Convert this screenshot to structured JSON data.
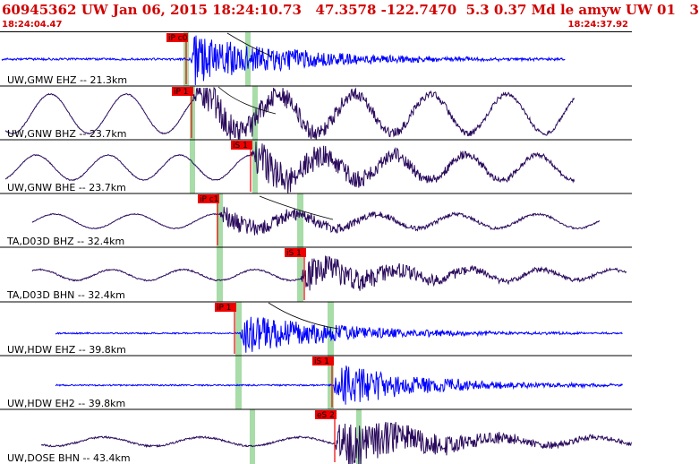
{
  "header": {
    "title": "60945362 UW Jan 06, 2015 18:24:10.73   47.3578 -122.7470  5.3 0.37 Md le amyw UW 01   3",
    "time_start": "18:24:04.47",
    "time_end": "18:24:37.92"
  },
  "colors": {
    "header_text": "#d00000",
    "trace_blue": "#0000ff",
    "trace_dark": "#2a0a5c",
    "pick_red": "#ee0000",
    "window_green": "#a8dca8",
    "divider": "#000000"
  },
  "traces": [
    {
      "label": "UW,GMW EHZ -- 21.3km",
      "color": "blue",
      "pick": "iP c0",
      "pick_type": "P"
    },
    {
      "label": "UW,GNW BHZ -- 23.7km",
      "color": "dark",
      "pick": "iP 1",
      "pick_type": "P"
    },
    {
      "label": "UW,GNW BHE -- 23.7km",
      "color": "dark",
      "pick": "iS 1",
      "pick_type": "S"
    },
    {
      "label": "TA,D03D BHZ -- 32.4km",
      "color": "dark",
      "pick": "iP c1",
      "pick_type": "P"
    },
    {
      "label": "TA,D03D BHN -- 32.4km",
      "color": "dark",
      "pick": "iS 1",
      "pick_type": "S"
    },
    {
      "label": "UW,HDW EHZ -- 39.8km",
      "color": "blue",
      "pick": "iP 1",
      "pick_type": "P"
    },
    {
      "label": "UW,HDW EH2 -- 39.8km",
      "color": "blue",
      "pick": "iS 1",
      "pick_type": "S"
    },
    {
      "label": "UW,DOSE BHN -- 43.4km",
      "color": "dark",
      "pick": "eS 2",
      "pick_type": "S"
    }
  ]
}
